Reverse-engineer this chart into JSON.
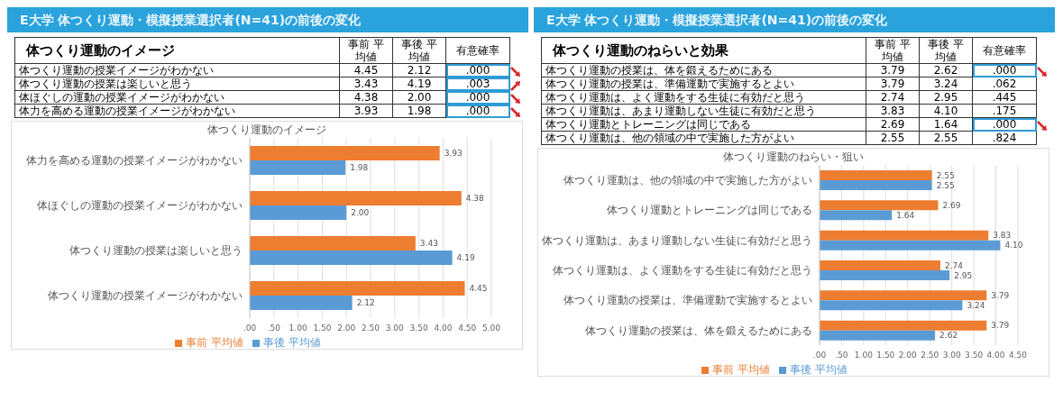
{
  "chart_data": [
    {
      "type": "bar",
      "orientation": "horizontal",
      "title": "E大学 体つくり運動・模擬授業選択者(N=41)の前後の変化",
      "subtitle": "体つくり運動のイメージ",
      "categories": [
        "体力を高める運動の授業イメージがわかない",
        "体ほぐしの運動の授業イメージがわかない",
        "体つくり運動の授業は楽しいと思う",
        "体つくり運動の授業イメージがわかない"
      ],
      "series": [
        {
          "name": "事前 平均値",
          "color": "#ed7d31",
          "values": [
            3.93,
            4.38,
            3.43,
            4.45
          ],
          "value_labels": [
            "3.93",
            "4.38",
            "3.43",
            "4.45"
          ]
        },
        {
          "name": "事後 平均値",
          "color": "#5b9bd5",
          "values": [
            1.98,
            2.0,
            4.19,
            2.12
          ],
          "value_labels": [
            "1.98",
            "2.00",
            "4.19",
            "2.12"
          ]
        }
      ],
      "xlim": [
        0,
        5
      ],
      "xticks": [
        {
          "value": 0,
          "label": ".00"
        },
        {
          "value": 0.5,
          "label": ".50"
        },
        {
          "value": 1,
          "label": "1.00"
        },
        {
          "value": 1.5,
          "label": "1.50"
        },
        {
          "value": 2,
          "label": "2.00"
        },
        {
          "value": 2.5,
          "label": "2.50"
        },
        {
          "value": 3,
          "label": "3.00"
        },
        {
          "value": 3.5,
          "label": "3.50"
        },
        {
          "value": 4,
          "label": "4.00"
        },
        {
          "value": 4.5,
          "label": "4.50"
        },
        {
          "value": 5,
          "label": "5.00"
        }
      ],
      "grid": "x",
      "legend": "bottom",
      "annotations": [
        "体つくり運動のイメージ",
        "有意確率",
        ".000",
        ".003",
        ".000",
        ".000"
      ]
    },
    {
      "type": "bar",
      "orientation": "horizontal",
      "title": "E大学 体つくり運動・模擬授業選択者(N=41)の前後の変化",
      "subtitle": "体つくり運動のねらいと効果",
      "categories": [
        "体つくり運動は、他の領域の中で実施した方がよい",
        "体つくり運動とトレーニングは同じである",
        "体つくり運動は、あまり運動しない生徒に有効だと思う",
        "体つくり運動は、よく運動をする生徒に有効だと思う",
        "体つくり運動の授業は、準備運動で実施するとよい",
        "体つくり運動の授業は、体を鍛えるためにある"
      ],
      "series": [
        {
          "name": "事前 平均値",
          "color": "#ed7d31",
          "values": [
            2.55,
            2.69,
            3.83,
            2.74,
            3.79,
            3.79
          ],
          "value_labels": [
            "2.55",
            "2.69",
            "3.83",
            "2.74",
            "3.79",
            "3.79"
          ]
        },
        {
          "name": "事後 平均値",
          "color": "#5b9bd5",
          "values": [
            2.55,
            1.64,
            4.1,
            2.95,
            3.24,
            2.62
          ],
          "value_labels": [
            "2.55",
            "1.64",
            "4.10",
            "2.95",
            "3.24",
            "2.62"
          ]
        }
      ],
      "xlim": [
        0,
        4.5
      ],
      "xticks": [
        {
          "value": 0,
          "label": ".00"
        },
        {
          "value": 0.5,
          "label": ".50"
        },
        {
          "value": 1,
          "label": "1.00"
        },
        {
          "value": 1.5,
          "label": "1.50"
        },
        {
          "value": 2,
          "label": "2.00"
        },
        {
          "value": 2.5,
          "label": "2.50"
        },
        {
          "value": 3,
          "label": "3.00"
        },
        {
          "value": 3.5,
          "label": "3.50"
        },
        {
          "value": 4,
          "label": "4.00"
        },
        {
          "value": 4.5,
          "label": "4.50"
        }
      ],
      "grid": "x",
      "legend": "bottom",
      "annotations": [
        "体つくり運動のねらい・狙い",
        "有意確率",
        ".000",
        ".062",
        ".445",
        ".175",
        ".000",
        ".824"
      ]
    }
  ]
}
